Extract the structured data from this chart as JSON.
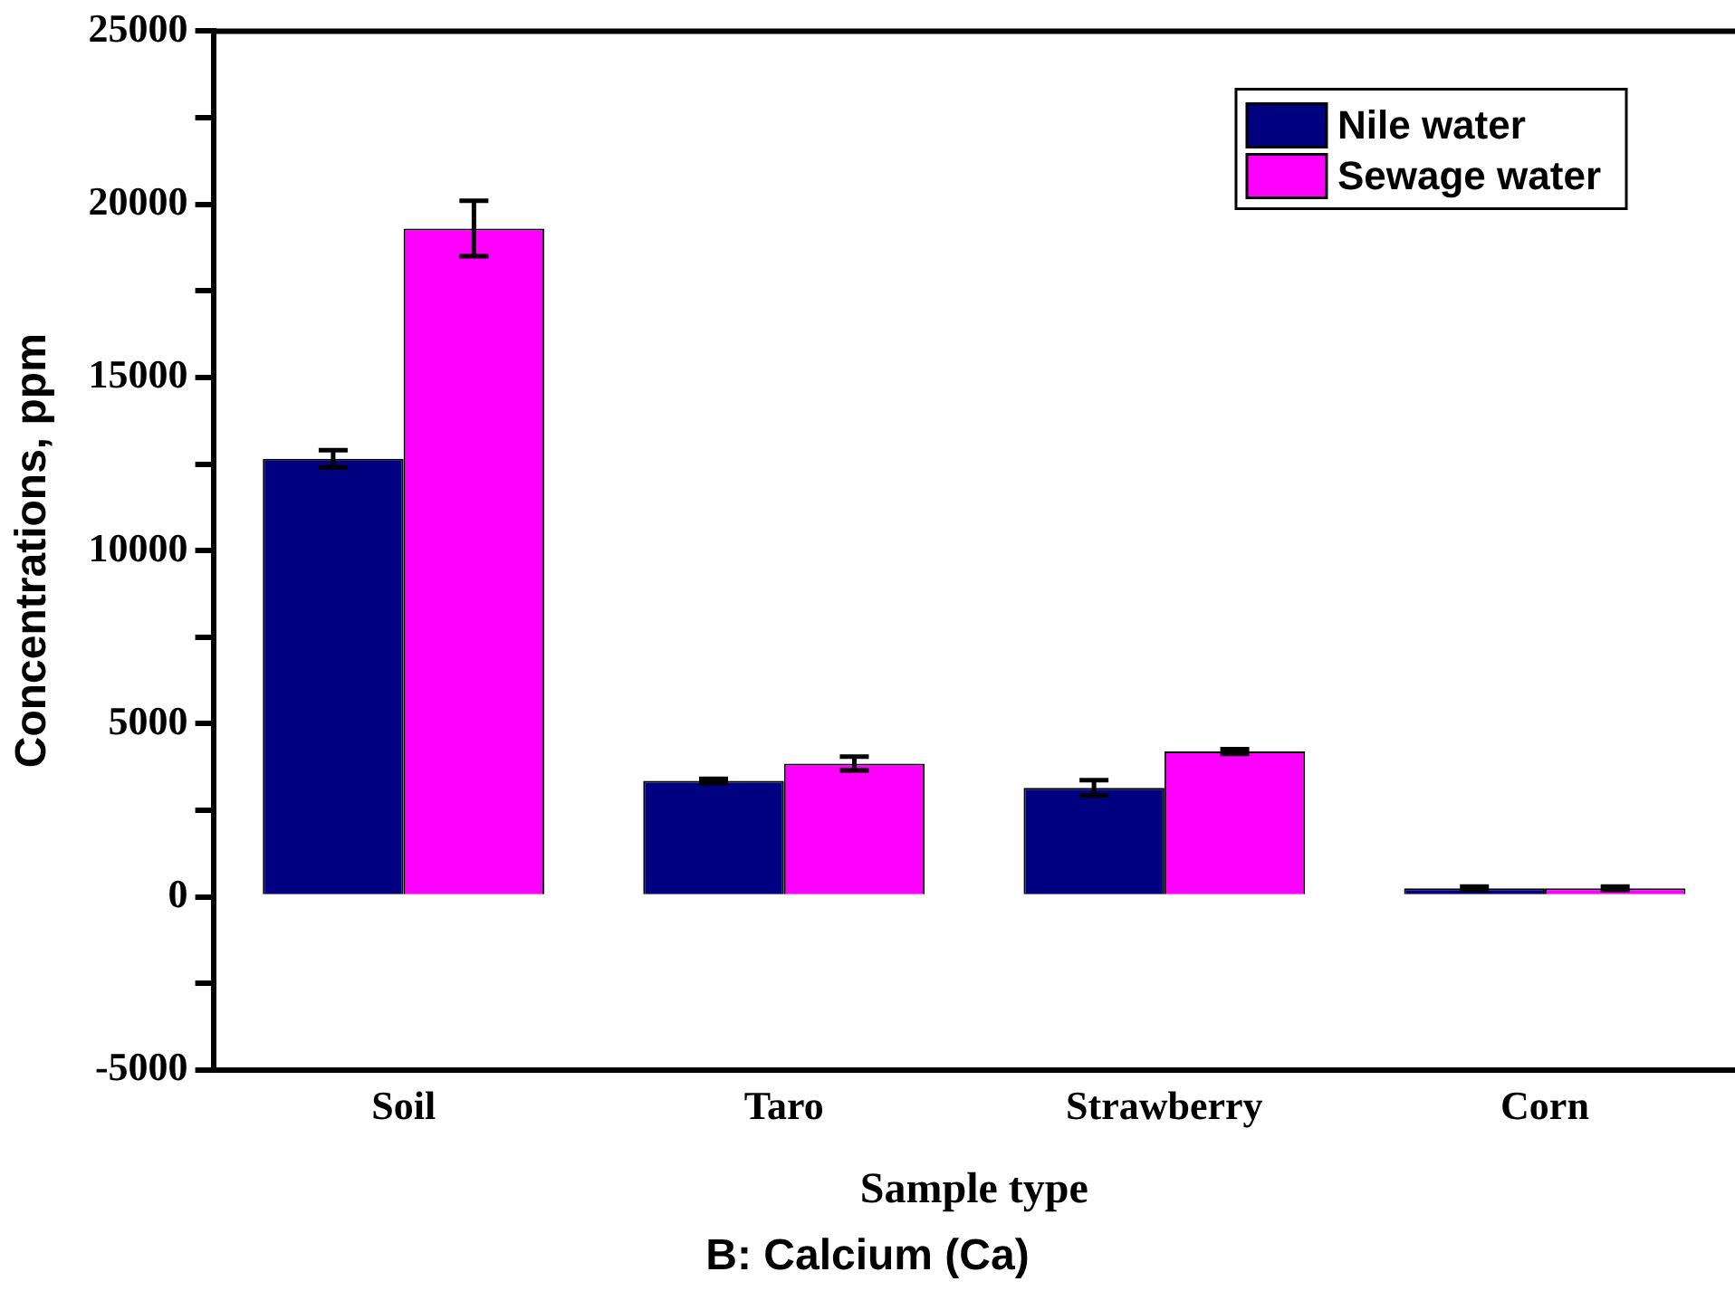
{
  "chart_data": {
    "type": "bar",
    "title": "B: Calcium (Ca)",
    "xlabel": "Sample type",
    "ylabel": "Concentrations, ppm",
    "categories": [
      "Soil",
      "Taro",
      "Strawberry",
      "Corn"
    ],
    "series": [
      {
        "name": "Nile water",
        "color": "#000080",
        "values": [
          12650,
          3350,
          3150,
          250
        ],
        "errors": [
          250,
          60,
          220,
          50
        ]
      },
      {
        "name": "Sewage water",
        "color": "#ff00ff",
        "values": [
          19300,
          3850,
          4200,
          250
        ],
        "errors": [
          800,
          200,
          70,
          50
        ]
      }
    ],
    "ylim": [
      -5000,
      25000
    ],
    "yticks": [
      -5000,
      {
        "value": -2500,
        "label": null
      },
      0,
      {
        "value": 2500,
        "label": null
      },
      5000,
      {
        "value": 7500,
        "label": null
      },
      10000,
      {
        "value": 12500,
        "label": null
      },
      15000,
      {
        "value": 17500,
        "label": null
      },
      20000,
      {
        "value": 22500,
        "label": null
      },
      25000
    ],
    "grid": false,
    "legend": "top right"
  }
}
